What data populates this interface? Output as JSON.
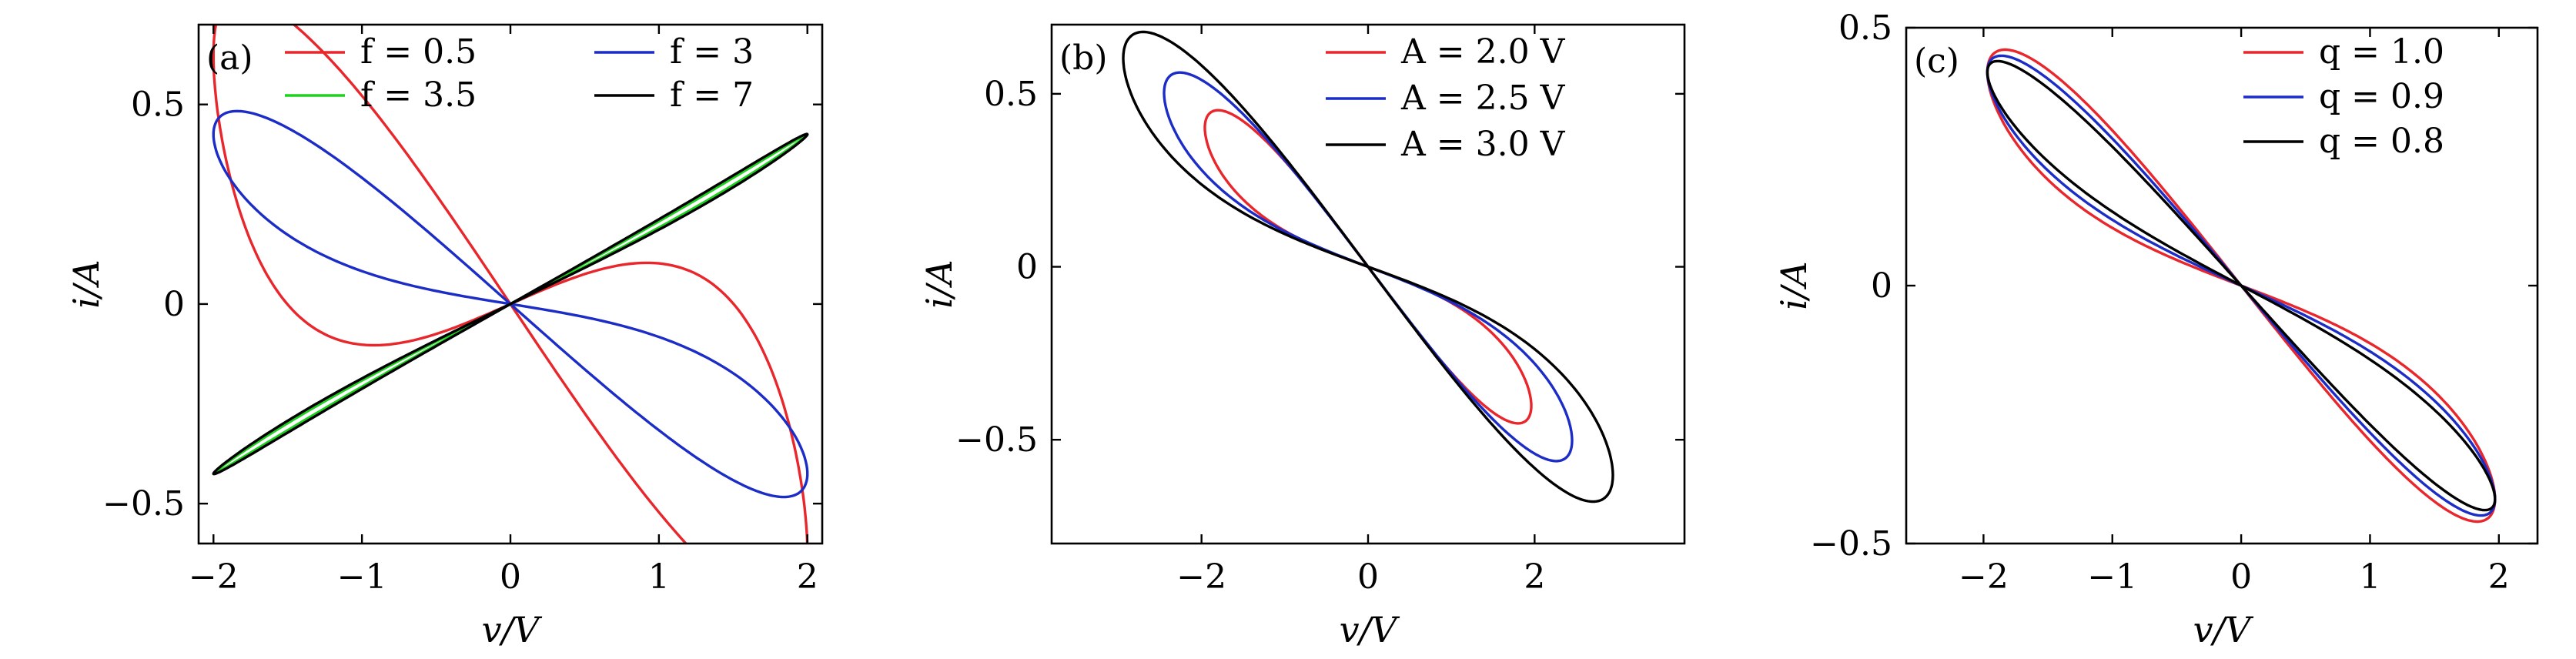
{
  "chart_data": [
    {
      "type": "line",
      "panel_label": "(a)",
      "xlabel": "v/V",
      "ylabel": "i/A",
      "xlim": [
        -2.1,
        2.1
      ],
      "ylim": [
        -0.6,
        0.7
      ],
      "xticks": [
        -2,
        -1,
        0,
        1,
        2
      ],
      "xtick_labels": [
        "−2",
        "−1",
        "0",
        "1",
        "2"
      ],
      "yticks": [
        -0.5,
        0,
        0.5
      ],
      "ytick_labels": [
        "−0.5",
        "0",
        "0.5"
      ],
      "legend_columns": 2,
      "legend_position": "top",
      "series": [
        {
          "name": "f = 0.5",
          "color": "#e8262b",
          "lobe": 0.48,
          "dir": 1,
          "peak": [
            -1.75,
            0.35
          ],
          "end": [
            2.0,
            -0.41
          ],
          "extreme": [
            1.95,
            -0.55
          ]
        },
        {
          "name": "f = 3",
          "color": "#1c2cc7",
          "lobe": 0.18,
          "dir": 1,
          "peak": [
            -1.75,
            0.33
          ],
          "end": [
            2.0,
            -0.41
          ],
          "extreme": [
            1.95,
            -0.41
          ]
        },
        {
          "name": "f = 3.5",
          "color": "#1fd11f",
          "lobe": 0.012,
          "dir": 1,
          "peak": [
            -1.9,
            -0.39
          ],
          "end": [
            2.0,
            0.39
          ],
          "extreme": [
            1.98,
            0.38
          ]
        },
        {
          "name": "f = 7",
          "color": "#000000",
          "lobe": 0.02,
          "dir": 1,
          "peak": [
            -1.9,
            -0.39
          ],
          "end": [
            2.0,
            0.39
          ],
          "extreme": [
            1.98,
            0.39
          ]
        }
      ]
    },
    {
      "type": "line",
      "panel_label": "(b)",
      "xlabel": "v/V",
      "ylabel": "i/A",
      "xlim": [
        -3.8,
        3.8
      ],
      "ylim": [
        -0.8,
        0.7
      ],
      "xticks": [
        -2,
        0,
        2
      ],
      "xtick_labels": [
        "−2",
        "0",
        "2"
      ],
      "yticks": [
        -0.5,
        0,
        0.5
      ],
      "ytick_labels": [
        "−0.5",
        "0",
        "0.5"
      ],
      "legend_columns": 1,
      "legend_position": "top-right",
      "series": [
        {
          "name": "A = 2.0 V",
          "color": "#e8262b",
          "amp": 2.0,
          "imax": 0.41,
          "lobe": 0.1
        },
        {
          "name": "A = 2.5 V",
          "color": "#1c2cc7",
          "amp": 2.5,
          "imax": 0.52,
          "lobe": 0.12
        },
        {
          "name": "A = 3.0 V",
          "color": "#000000",
          "amp": 3.0,
          "imax": 0.64,
          "lobe": 0.15
        }
      ]
    },
    {
      "type": "line",
      "panel_label": "(c)",
      "xlabel": "v/V",
      "ylabel": "i/A",
      "xlim": [
        -2.6,
        2.3
      ],
      "ylim": [
        -0.5,
        0.5
      ],
      "xticks": [
        -2,
        -1,
        0,
        1,
        2
      ],
      "xtick_labels": [
        "−2",
        "−1",
        "0",
        "1",
        "2"
      ],
      "yticks": [
        -0.5,
        0,
        0.5
      ],
      "ytick_labels": [
        "−0.5",
        "0",
        "0.5"
      ],
      "legend_columns": 1,
      "legend_position": "top-right",
      "series": [
        {
          "name": "q = 1.0",
          "color": "#e8262b",
          "imax": 0.4,
          "lobe": 0.09
        },
        {
          "name": "q = 0.9",
          "color": "#1c2cc7",
          "imax": 0.4,
          "lobe": 0.075
        },
        {
          "name": "q = 0.8",
          "color": "#000000",
          "imax": 0.4,
          "lobe": 0.06
        }
      ]
    }
  ]
}
